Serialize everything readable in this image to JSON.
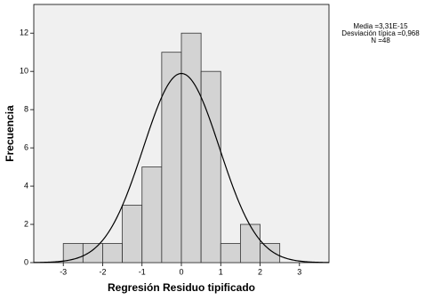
{
  "chart_data": {
    "type": "histogram",
    "xlabel": "Regresión Residuo tipificado",
    "ylabel": "Frecuencia",
    "bins": [
      -3,
      -2.5,
      -2,
      -1.5,
      -1,
      -0.5,
      0,
      0.5,
      1,
      1.5,
      2,
      2.5
    ],
    "values": [
      1,
      1,
      1,
      3,
      5,
      11,
      12,
      10,
      1,
      2,
      1
    ],
    "color": "#d3d3d3",
    "xlim": [
      -3.75,
      3.75
    ],
    "xticks": [
      -3,
      -2,
      -1,
      0,
      1,
      2,
      3
    ],
    "ylim": [
      0,
      13.5
    ],
    "yticks": [
      0,
      2,
      4,
      6,
      8,
      10,
      12
    ],
    "stats": [
      {
        "value": 3.31e-15,
        "label": "Media =3,31E-15"
      },
      {
        "value": 0.968,
        "label": "Desviación típica =0,968"
      },
      {
        "value": 48,
        "label": "N =48"
      }
    ]
  }
}
